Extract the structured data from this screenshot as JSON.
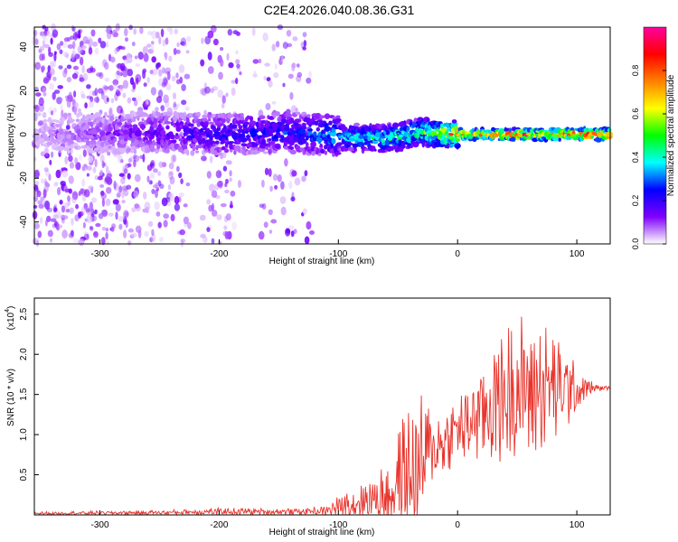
{
  "title": "C2E4.2026.040.08.36.G31",
  "colors": {
    "snr_line": "#e8342c",
    "axis": "#000000",
    "grid": "#000000"
  },
  "chart_data": [
    {
      "type": "heatmap",
      "xlabel": "Height of straight line (km)",
      "ylabel": "Frequency (Hz)",
      "xlim": [
        -355,
        128
      ],
      "ylim": [
        -50,
        49
      ],
      "x_ticks": [
        -300,
        -200,
        -100,
        0,
        100
      ],
      "y_ticks": [
        -40,
        -20,
        0,
        20,
        40
      ],
      "colorbar": {
        "label": "Normalized spectral amplitude",
        "range": [
          0,
          1
        ],
        "ticks": [
          "0.0",
          "0.2",
          "0.4",
          "0.6",
          "0.8"
        ],
        "colormap": [
          "#ffffff",
          "#7f00ff",
          "#0000ff",
          "#00ffff",
          "#00ff00",
          "#ffff00",
          "#ff8000",
          "#ff0000",
          "#ff00a0"
        ]
      },
      "ridge": [
        {
          "x": -355,
          "f": 0,
          "amp": 0.05
        },
        {
          "x": -260,
          "f": 1,
          "amp": 0.18
        },
        {
          "x": -200,
          "f": 0,
          "amp": 0.25
        },
        {
          "x": -140,
          "f": 1,
          "amp": 0.3
        },
        {
          "x": -100,
          "f": -1,
          "amp": 0.4
        },
        {
          "x": -60,
          "f": -2,
          "amp": 0.5
        },
        {
          "x": -30,
          "f": 1,
          "amp": 0.55
        },
        {
          "x": 0,
          "f": 0,
          "amp": 0.85
        },
        {
          "x": 60,
          "f": 0,
          "amp": 0.95
        },
        {
          "x": 128,
          "f": 0,
          "amp": 1.0
        }
      ],
      "noise_band": {
        "x_from": -355,
        "x_to": -120,
        "f_min": -50,
        "f_max": 49
      }
    },
    {
      "type": "line",
      "xlabel": "Height of straight line (km)",
      "ylabel": "SNR (10 * v/v)",
      "y_multiplier": "(x10",
      "y_multiplier_exp": "4",
      "y_multiplier_close": ")",
      "xlim": [
        -355,
        128
      ],
      "ylim": [
        0,
        2.7
      ],
      "x_ticks": [
        -300,
        -200,
        -100,
        0,
        100
      ],
      "y_ticks": [
        "0.5",
        "1.0",
        "1.5",
        "2.0",
        "2.5"
      ],
      "series": [
        {
          "envelope": [
            {
              "x": -355,
              "base": 0.02,
              "spread": 0.02
            },
            {
              "x": -250,
              "base": 0.03,
              "spread": 0.03
            },
            {
              "x": -200,
              "base": 0.04,
              "spread": 0.05
            },
            {
              "x": -150,
              "base": 0.04,
              "spread": 0.04
            },
            {
              "x": -110,
              "base": 0.05,
              "spread": 0.06
            },
            {
              "x": -90,
              "base": 0.15,
              "spread": 0.25
            },
            {
              "x": -70,
              "base": 0.2,
              "spread": 0.3
            },
            {
              "x": -55,
              "base": 0.3,
              "spread": 0.5
            },
            {
              "x": -45,
              "base": 0.5,
              "spread": 0.8
            },
            {
              "x": -35,
              "base": 0.55,
              "spread": 1.0
            },
            {
              "x": -20,
              "base": 0.8,
              "spread": 0.6
            },
            {
              "x": -10,
              "base": 0.95,
              "spread": 0.4
            },
            {
              "x": 0,
              "base": 1.05,
              "spread": 0.5
            },
            {
              "x": 20,
              "base": 1.3,
              "spread": 0.7
            },
            {
              "x": 40,
              "base": 1.5,
              "spread": 0.9
            },
            {
              "x": 60,
              "base": 1.6,
              "spread": 1.0
            },
            {
              "x": 80,
              "base": 1.55,
              "spread": 0.8
            },
            {
              "x": 100,
              "base": 1.55,
              "spread": 0.35
            },
            {
              "x": 115,
              "base": 1.58,
              "spread": 0.05
            },
            {
              "x": 128,
              "base": 1.58,
              "spread": 0.02
            }
          ]
        }
      ]
    }
  ]
}
